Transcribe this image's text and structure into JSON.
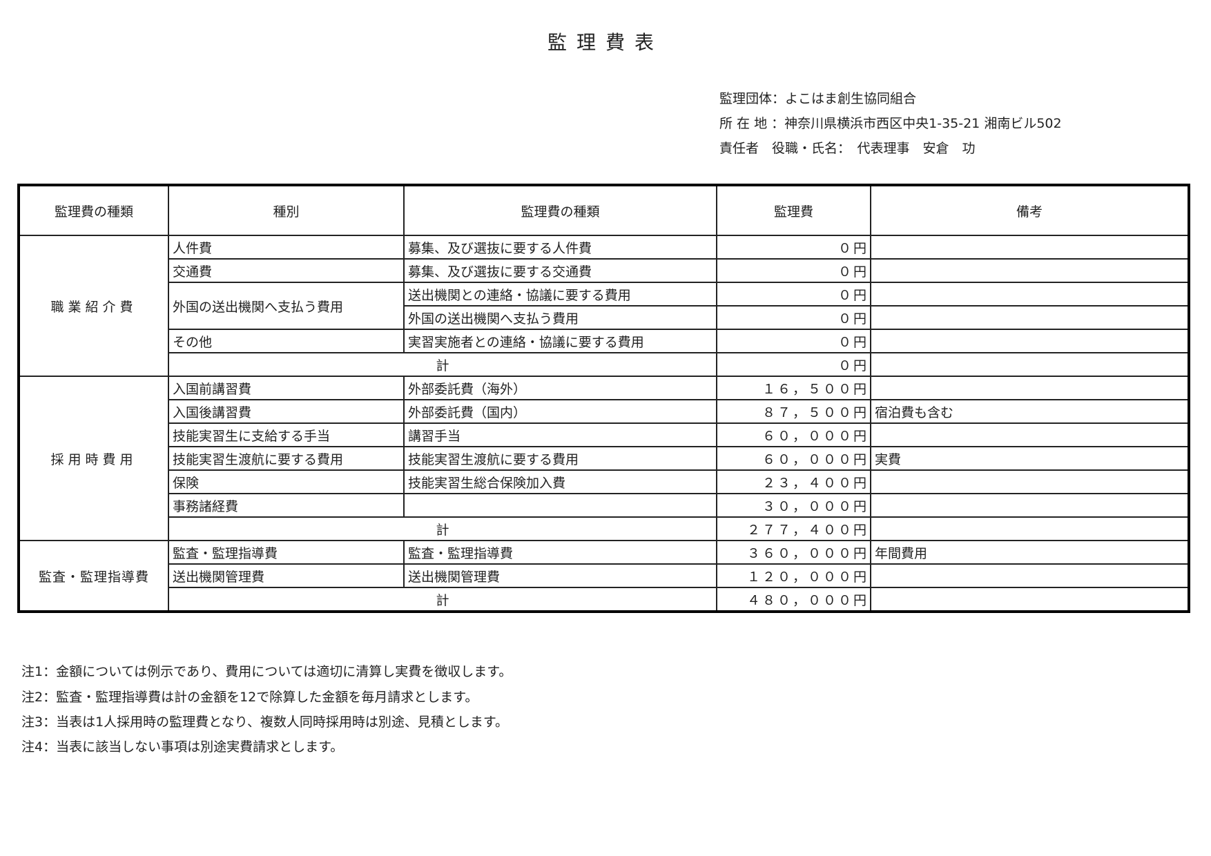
{
  "title": "監理費表",
  "info": {
    "organization": "監理団体：よこはま創生協同組合",
    "address": "所 在 地 ：神奈川県横浜市西区中央1-35-21 湘南ビル502",
    "representative": "責任者　役職・氏名：　代表理事　安倉　功"
  },
  "table": {
    "headers": [
      "監理費の種類",
      "種別",
      "監理費の種類",
      "監理費",
      "備考"
    ],
    "groups": [
      {
        "category": "職業紹介費",
        "rows": [
          {
            "type": "人件費",
            "detail": "募集、及び選抜に要する人件費",
            "amount": "０円",
            "note": ""
          },
          {
            "type": "交通費",
            "detail": "募集、及び選抜に要する交通費",
            "amount": "０円",
            "note": ""
          },
          {
            "type": "外国の送出機関へ支払う費用",
            "detail": "送出機関との連絡・協議に要する費用",
            "amount": "０円",
            "note": ""
          },
          {
            "type": "",
            "detail": "外国の送出機関へ支払う費用",
            "amount": "０円",
            "note": ""
          },
          {
            "type": "その他",
            "detail": "実習実施者との連絡・協議に要する費用",
            "amount": "０円",
            "note": ""
          }
        ],
        "total_label": "計",
        "total": "０円"
      },
      {
        "category": "採用時費用",
        "rows": [
          {
            "type": "入国前講習費",
            "detail": "外部委託費（海外）",
            "amount": "１６，５００円",
            "note": ""
          },
          {
            "type": "入国後講習費",
            "detail": "外部委託費（国内）",
            "amount": "８７，５００円",
            "note": "宿泊費も含む"
          },
          {
            "type": "技能実習生に支給する手当",
            "detail": "講習手当",
            "amount": "６０，０００円",
            "note": ""
          },
          {
            "type": "技能実習生渡航に要する費用",
            "detail": "技能実習生渡航に要する費用",
            "amount": "６０，０００円",
            "note": "実費"
          },
          {
            "type": "保険",
            "detail": "技能実習生総合保険加入費",
            "amount": "２３，４００円",
            "note": ""
          },
          {
            "type": "事務諸経費",
            "detail": "",
            "amount": "３０，０００円",
            "note": ""
          }
        ],
        "total_label": "計",
        "total": "２７７，４００円"
      },
      {
        "category": "監査・監理指導費",
        "rows": [
          {
            "type": "監査・監理指導費",
            "detail": "監査・監理指導費",
            "amount": "３６０，０００円",
            "note": "年間費用"
          },
          {
            "type": "送出機関管理費",
            "detail": "送出機関管理費",
            "amount": "１２０，０００円",
            "note": ""
          }
        ],
        "total_label": "計",
        "total": "４８０，０００円"
      }
    ]
  },
  "notes": [
    "注1：金額については例示であり、費用については適切に清算し実費を徴収します。",
    "注2：監査・監理指導費は計の金額を12で除算した金額を毎月請求とします。",
    "注3：当表は1人採用時の監理費となり、複数人同時採用時は別途、見積とします。",
    "注4：当表に該当しない事項は別途実費請求とします。"
  ]
}
